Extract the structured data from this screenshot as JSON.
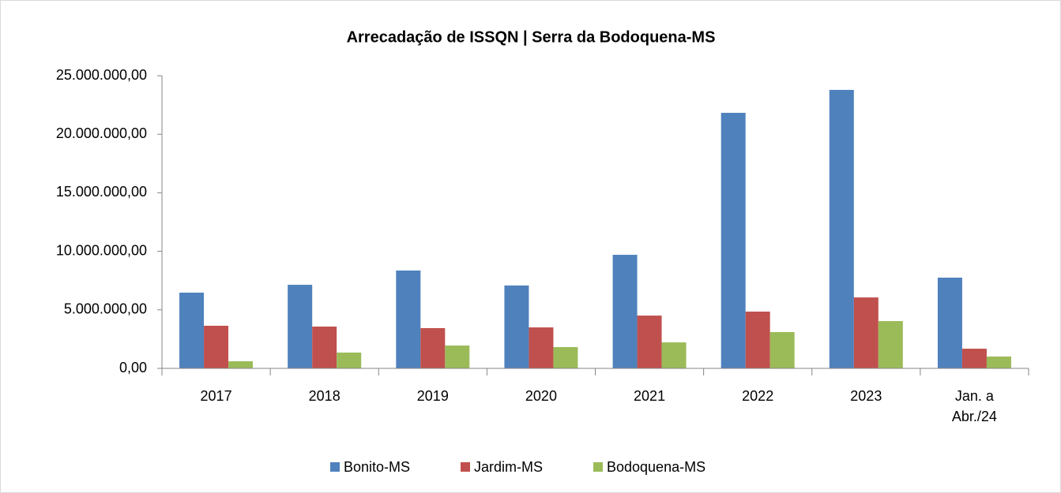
{
  "chart_data": {
    "type": "bar",
    "title": "Arrecadação de ISSQN | Serra da Bodoquena-MS",
    "categories": [
      "2017",
      "2018",
      "2019",
      "2020",
      "2021",
      "2022",
      "2023",
      "Jan. a Abr./24"
    ],
    "series": [
      {
        "name": "Bonito-MS",
        "color": "#4f81bd",
        "values": [
          6470000,
          7140000,
          8360000,
          7080000,
          9700000,
          21830000,
          23790000,
          7750000
        ]
      },
      {
        "name": "Jardim-MS",
        "color": "#c0504d",
        "values": [
          3640000,
          3570000,
          3440000,
          3500000,
          4510000,
          4850000,
          6060000,
          1680000
        ]
      },
      {
        "name": "Bodoquena-MS",
        "color": "#9bbb59",
        "values": [
          610000,
          1350000,
          1950000,
          1820000,
          2220000,
          3100000,
          4040000,
          1010000
        ]
      }
    ],
    "ylim": [
      0,
      25000000
    ],
    "yticks": [
      {
        "value": 0,
        "label": "0,00"
      },
      {
        "value": 5000000,
        "label": "5.000.000,00"
      },
      {
        "value": 10000000,
        "label": "10.000.000,00"
      },
      {
        "value": 15000000,
        "label": "15.000.000,00"
      },
      {
        "value": 20000000,
        "label": "20.000.000,00"
      },
      {
        "value": 25000000,
        "label": "25.000.000,00"
      }
    ],
    "grid": false,
    "legend": "bottom"
  }
}
